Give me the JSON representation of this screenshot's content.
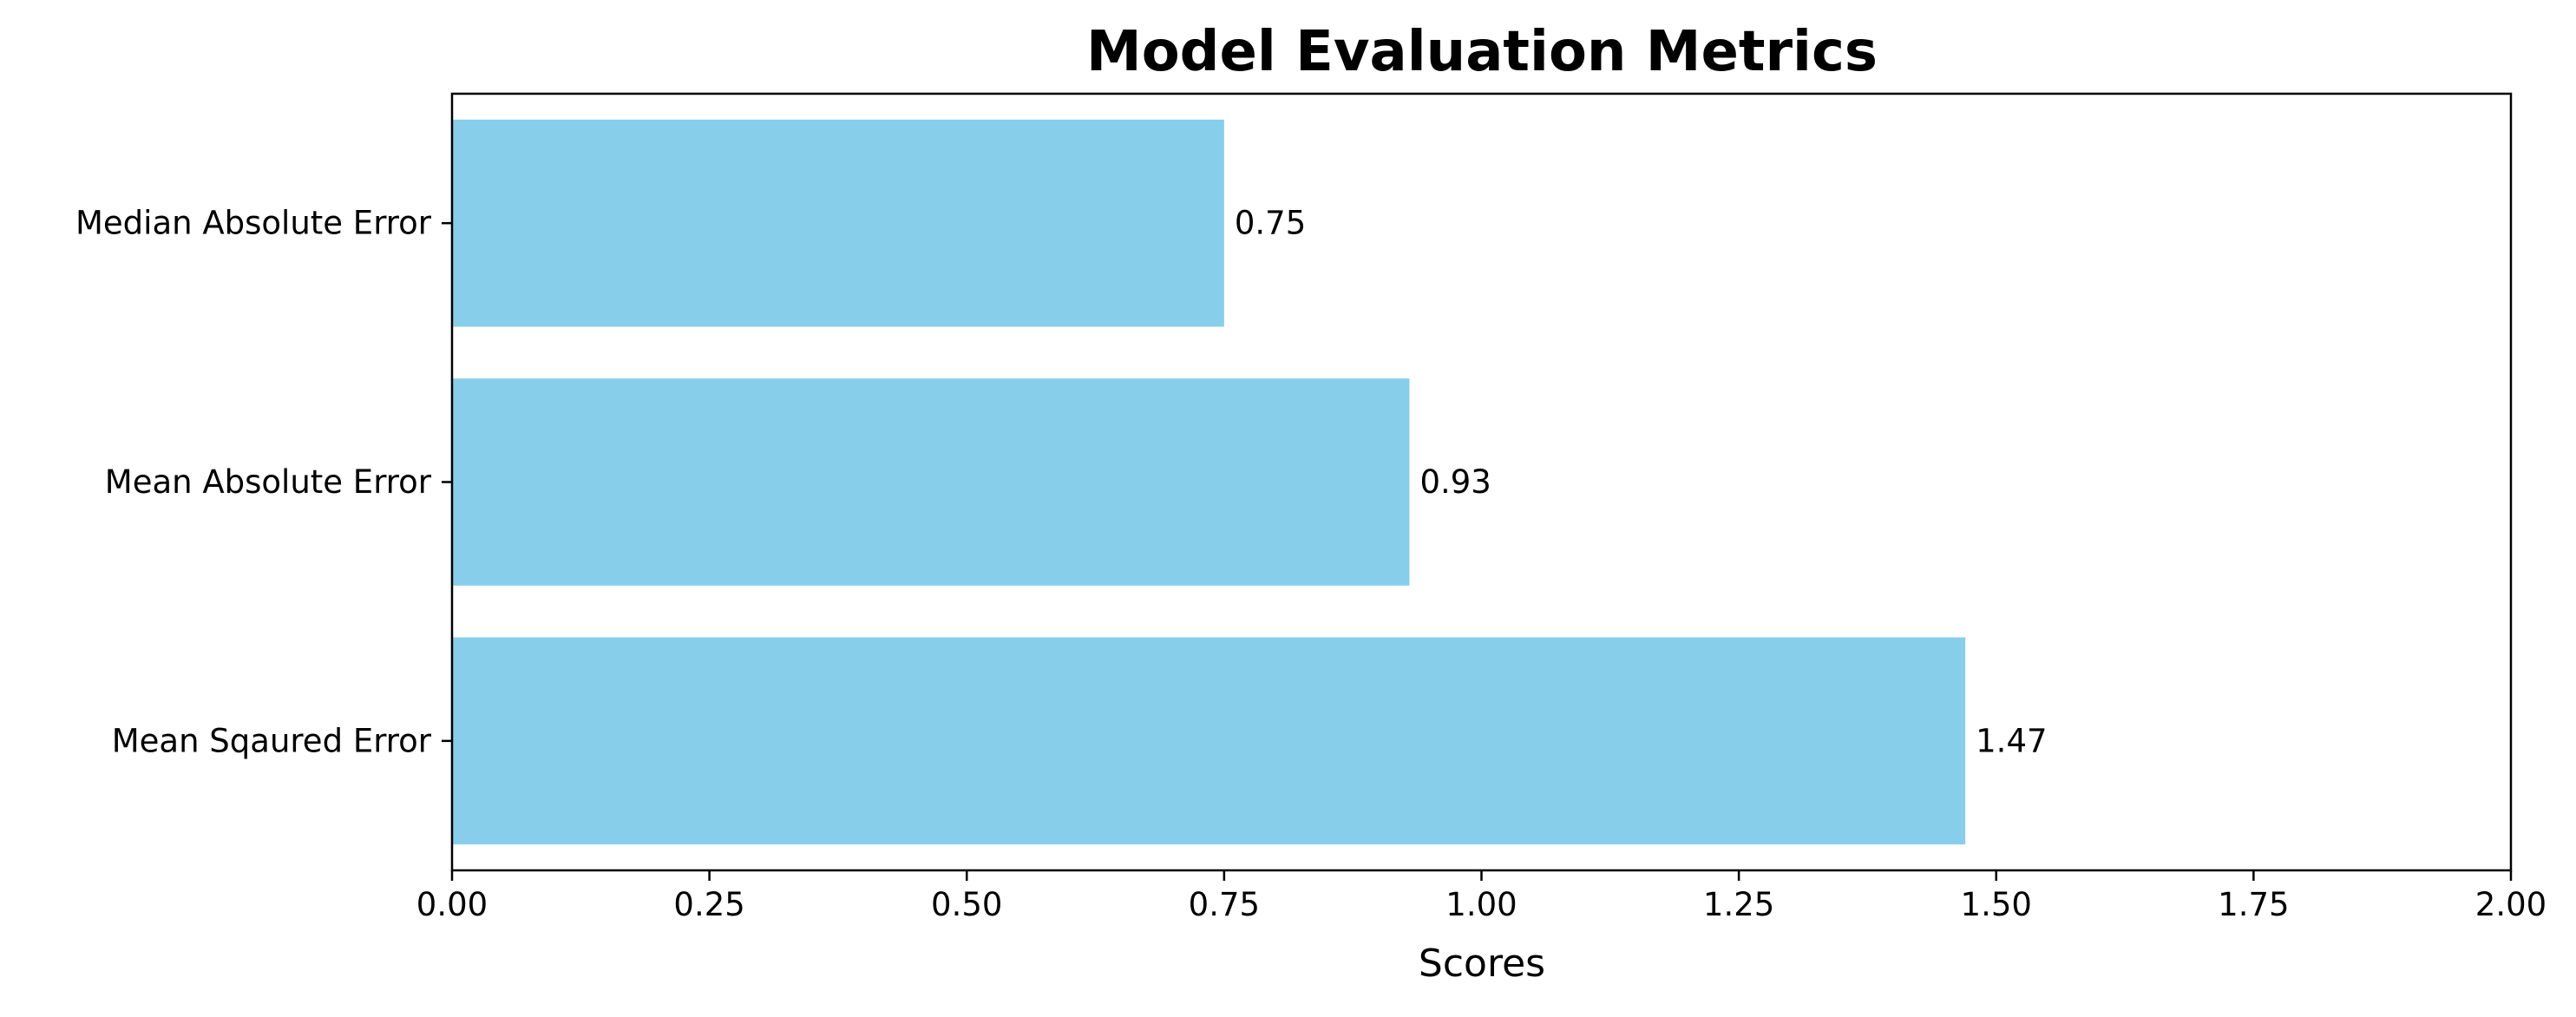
{
  "chart_data": {
    "type": "bar",
    "orientation": "horizontal",
    "title": "Model Evaluation Metrics",
    "xlabel": "Scores",
    "ylabel": "",
    "categories": [
      "Median Absolute Error",
      "Mean Absolute Error",
      "Mean Sqaured Error"
    ],
    "values": [
      0.75,
      0.93,
      1.47
    ],
    "value_labels": [
      "0.75",
      "0.93",
      "1.47"
    ],
    "xlim": [
      0,
      2
    ],
    "xticks": [
      "0.00",
      "0.25",
      "0.50",
      "0.75",
      "1.00",
      "1.25",
      "1.50",
      "1.75",
      "2.00"
    ],
    "grid": false,
    "legend": "none",
    "bar_color": "#87CEEB"
  }
}
